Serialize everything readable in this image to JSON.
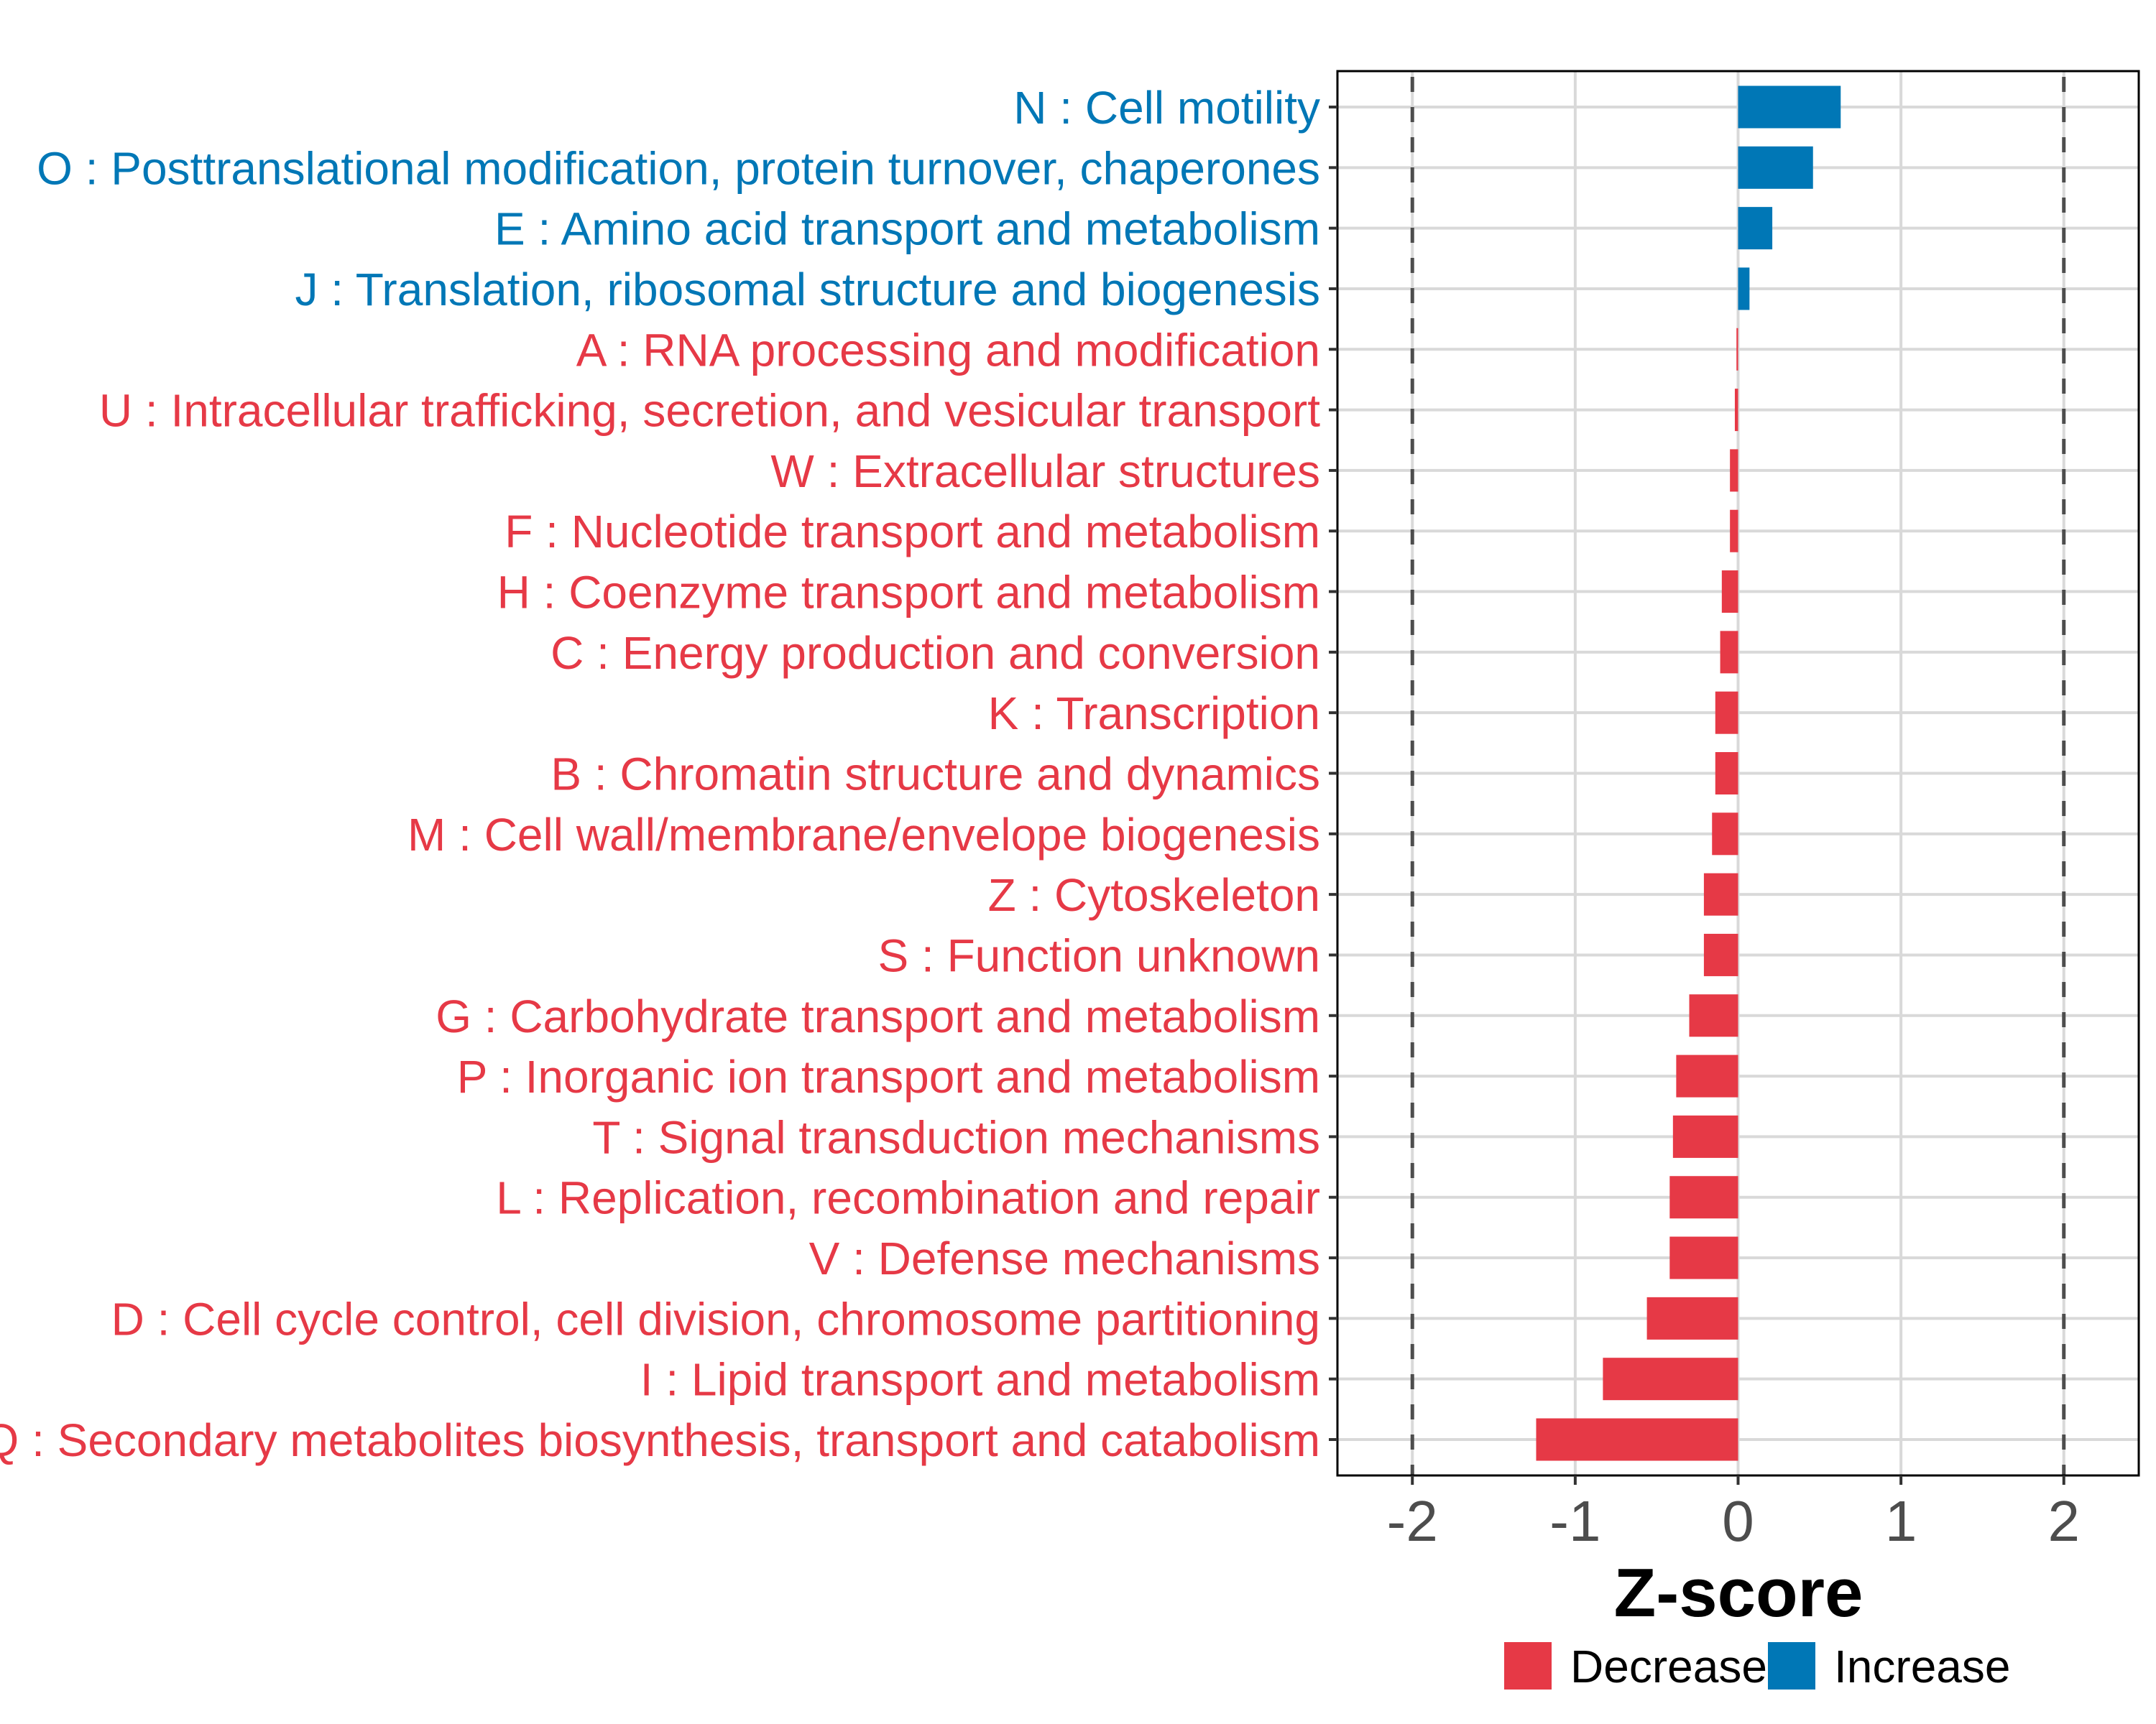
{
  "chart_data": {
    "type": "bar",
    "orientation": "horizontal",
    "title": "",
    "xlabel": "Z-score",
    "ylabel": "",
    "xlim": [
      -2.46,
      2.46
    ],
    "xticks": [
      -2,
      -1,
      0,
      1,
      2
    ],
    "xtick_labels": [
      "-2",
      "-1",
      "0",
      "1",
      "2"
    ],
    "reference_lines": [
      -2,
      2
    ],
    "grid": true,
    "legend_position": "bottom",
    "colors": {
      "Decrease": "#E63946",
      "Increase": "#0077B6"
    },
    "categories": [
      "N : Cell motility",
      "O : Posttranslational modification, protein turnover, chaperones",
      "E : Amino acid transport and metabolism",
      "J : Translation, ribosomal structure and biogenesis",
      "A : RNA processing and modification",
      "U : Intracellular trafficking, secretion, and vesicular transport",
      "W : Extracellular structures",
      "F : Nucleotide transport and metabolism",
      "H : Coenzyme transport and metabolism",
      "C : Energy production and conversion",
      "K : Transcription",
      "B : Chromatin structure and dynamics",
      "M : Cell wall/membrane/envelope biogenesis",
      "Z : Cytoskeleton",
      "S : Function unknown",
      "G : Carbohydrate transport and metabolism",
      "P : Inorganic ion transport and metabolism",
      "T : Signal transduction mechanisms",
      "L : Replication, recombination and repair",
      "V : Defense mechanisms",
      "D : Cell cycle control, cell division, chromosome partitioning",
      "I : Lipid transport and metabolism",
      "Q : Secondary metabolites biosynthesis, transport and catabolism"
    ],
    "values": [
      0.63,
      0.46,
      0.21,
      0.07,
      -0.01,
      -0.02,
      -0.05,
      -0.05,
      -0.1,
      -0.11,
      -0.14,
      -0.14,
      -0.16,
      -0.21,
      -0.21,
      -0.3,
      -0.38,
      -0.4,
      -0.42,
      -0.42,
      -0.56,
      -0.83,
      -1.24
    ],
    "groups": [
      "Increase",
      "Increase",
      "Increase",
      "Increase",
      "Decrease",
      "Decrease",
      "Decrease",
      "Decrease",
      "Decrease",
      "Decrease",
      "Decrease",
      "Decrease",
      "Decrease",
      "Decrease",
      "Decrease",
      "Decrease",
      "Decrease",
      "Decrease",
      "Decrease",
      "Decrease",
      "Decrease",
      "Decrease",
      "Decrease"
    ],
    "legend": [
      {
        "label": "Decrease",
        "color": "#E63946"
      },
      {
        "label": "Increase",
        "color": "#0077B6"
      }
    ]
  }
}
